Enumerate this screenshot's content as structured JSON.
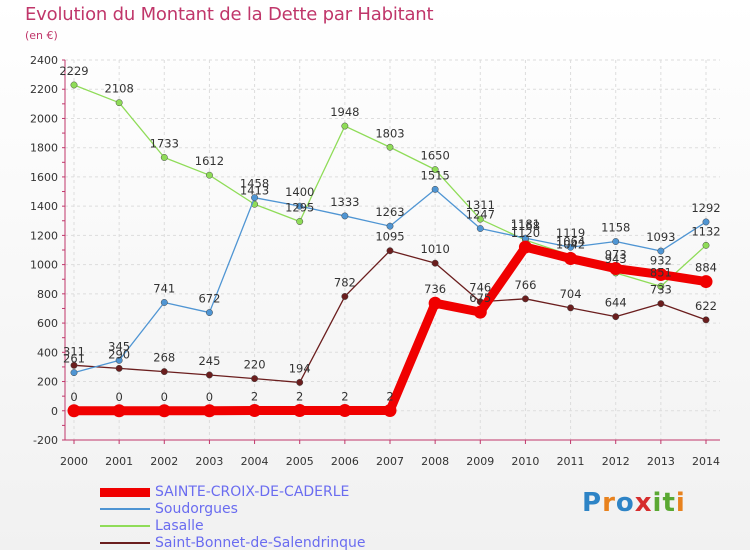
{
  "header": {
    "title": "Evolution du Montant de la Dette par Habitant",
    "subtitle": "(en €)"
  },
  "brand": {
    "text": "Proxiti",
    "letters": [
      "P",
      "r",
      "o",
      "x",
      "i",
      "t",
      "i"
    ],
    "colors": [
      "#2e84c6",
      "#e8821e",
      "#2e84c6",
      "#d62d2d",
      "#5aa832",
      "#5aa832",
      "#e8821e"
    ]
  },
  "chart_data": {
    "type": "line",
    "title": "Evolution du Montant de la Dette par Habitant",
    "subtitle": "(en €)",
    "xlabel": "",
    "ylabel": "",
    "x": [
      "2000",
      "2001",
      "2002",
      "2003",
      "2004",
      "2005",
      "2006",
      "2007",
      "2008",
      "2009",
      "2010",
      "2011",
      "2012",
      "2013",
      "2014"
    ],
    "ylim": [
      -200,
      2400
    ],
    "yticks": [
      "-200",
      "0",
      "200",
      "400",
      "600",
      "800",
      "1000",
      "1200",
      "1400",
      "1600",
      "1800",
      "2000",
      "2200",
      "2400"
    ],
    "grid": true,
    "legend_position": "bottom",
    "series": [
      {
        "name": "Saint-Bonnet-de-Salendrinque",
        "color": "#6b1e1e",
        "values": [
          311,
          290,
          268,
          245,
          220,
          194,
          782,
          1095,
          1010,
          746,
          766,
          704,
          644,
          733,
          622
        ],
        "labels": [
          "311",
          "290",
          "268",
          "245",
          "220",
          "194",
          "782",
          "1095",
          "1010",
          "746",
          "766",
          "704",
          "644",
          "733",
          "622"
        ]
      },
      {
        "name": "Lasalle",
        "color": "#8fdc58",
        "values": [
          2229,
          2108,
          1733,
          1612,
          1413,
          1295,
          1948,
          1803,
          1650,
          1311,
          1168,
          1064,
          943,
          851,
          1132
        ],
        "labels": [
          "2229",
          "2108",
          "1733",
          "1612",
          "1413",
          "1295",
          "1948",
          "1803",
          "1650",
          "1311",
          "1168",
          "1064",
          "943",
          "851",
          "1132"
        ]
      },
      {
        "name": "Soudorgues",
        "color": "#4f95d3",
        "values": [
          261,
          345,
          741,
          672,
          1458,
          1400,
          1333,
          1263,
          1515,
          1247,
          1181,
          1119,
          1158,
          1093,
          1292
        ],
        "labels": [
          "261",
          "345",
          "741",
          "672",
          "1458",
          "1400",
          "1333",
          "1263",
          "1515",
          "1247",
          "1181",
          "1119",
          "1158",
          "1093",
          "1292"
        ]
      },
      {
        "name": "SAINTE-CROIX-DE-CADERLE",
        "color": "#f00000",
        "values": [
          0,
          0,
          0,
          0,
          2,
          2,
          2,
          2,
          736,
          675,
          1120,
          1042,
          973,
          932,
          884
        ],
        "labels": [
          "0",
          "0",
          "0",
          "0",
          "2",
          "2",
          "2",
          "2",
          "736",
          "675",
          "1120",
          "1042",
          "973",
          "932",
          "884"
        ]
      }
    ],
    "legend_order": [
      "SAINTE-CROIX-DE-CADERLE",
      "Soudorgues",
      "Lasalle",
      "Saint-Bonnet-de-Salendrinque"
    ]
  }
}
